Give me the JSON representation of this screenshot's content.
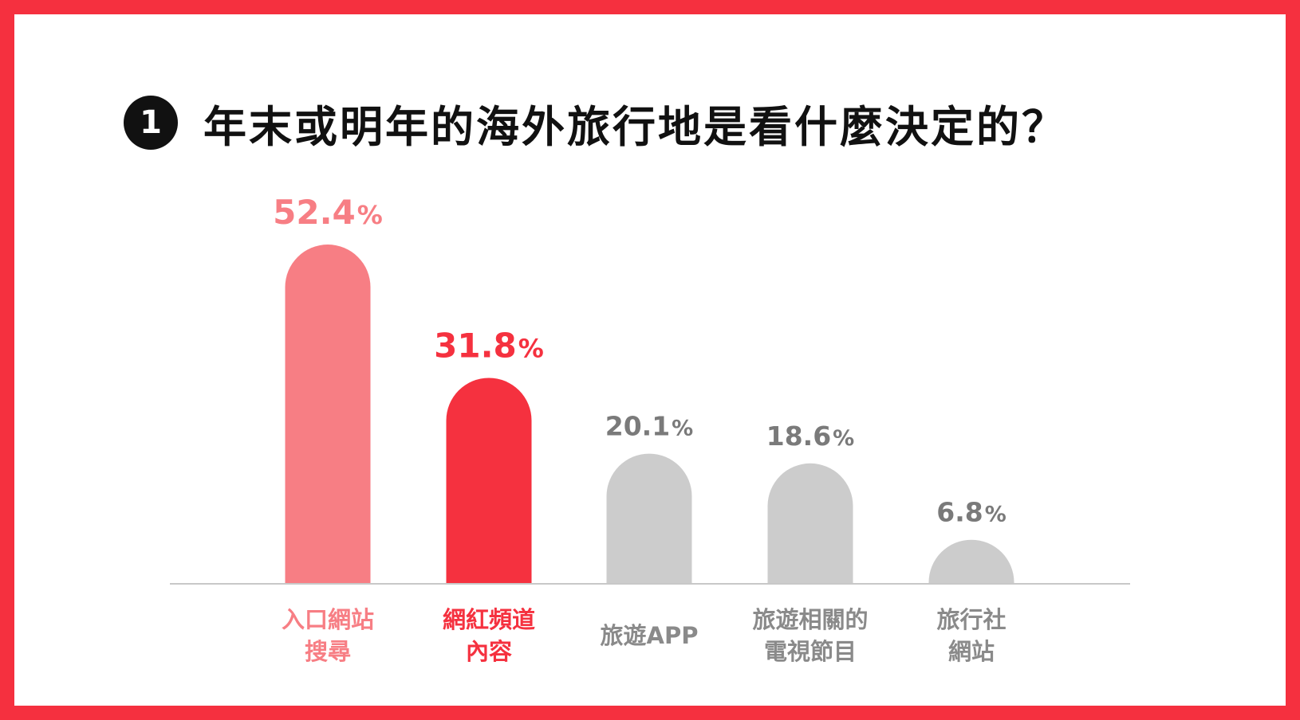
{
  "title": {
    "number": "1",
    "text": "年末或明年的海外旅行地是看什麼決定的？"
  },
  "colors": {
    "border": "#f5303f",
    "highlight_light": "#f77e84",
    "highlight_strong": "#f5313f",
    "neutral_bar": "#cccccc",
    "neutral_text": "#7a7a7a",
    "baseline": "#c8c8c8"
  },
  "chart_data": {
    "type": "bar",
    "title": "年末或明年的海外旅行地是看什麼決定的？",
    "unit": "%",
    "categories": [
      [
        "入口網站",
        "搜尋"
      ],
      [
        "網紅頻道",
        "內容"
      ],
      [
        "旅遊APP"
      ],
      [
        "旅遊相關的",
        "電視節目"
      ],
      [
        "旅行社",
        "網站"
      ]
    ],
    "values": [
      52.4,
      31.8,
      20.1,
      18.6,
      6.8
    ],
    "value_labels": [
      "52.4",
      "31.8",
      "20.1",
      "18.6",
      "6.8"
    ],
    "percent_sign": "%",
    "bar_styles": [
      "highlight_light",
      "highlight_strong",
      "neutral",
      "neutral",
      "neutral"
    ],
    "ylim": [
      0,
      52.4
    ],
    "grid": false,
    "legend": "none"
  }
}
